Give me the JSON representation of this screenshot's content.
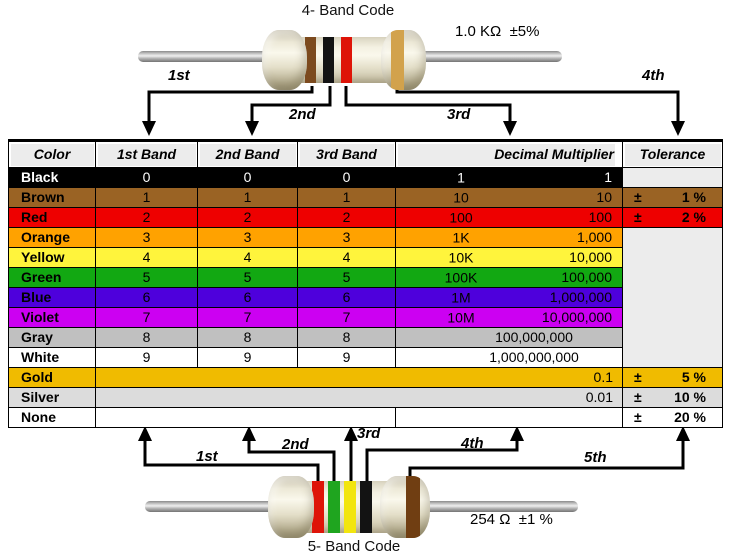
{
  "top_diagram": {
    "title": "4- Band Code",
    "value_label": "1.0 KΩ  ±5%",
    "arrow_labels": [
      "1st",
      "2nd",
      "3rd",
      "4th"
    ],
    "bands": [
      {
        "name": "brown",
        "hex": "#7C4A1E"
      },
      {
        "name": "black",
        "hex": "#131313"
      },
      {
        "name": "red",
        "hex": "#DE1408"
      },
      {
        "name": "gold",
        "hex": "#D2A24C"
      }
    ]
  },
  "bottom_diagram": {
    "title": "5- Band Code",
    "value_label": "254 Ω  ±1 %",
    "arrow_labels": [
      "1st",
      "2nd",
      "3rd",
      "4th",
      "5th"
    ],
    "bands": [
      {
        "name": "red",
        "hex": "#DE1408"
      },
      {
        "name": "green",
        "hex": "#1FA51F"
      },
      {
        "name": "yellow",
        "hex": "#F2E50E"
      },
      {
        "name": "black",
        "hex": "#131313"
      },
      {
        "name": "brown",
        "hex": "#703E12"
      }
    ]
  },
  "table": {
    "headers": [
      "Color",
      "1st Band",
      "2nd Band",
      "3rd Band",
      "Decimal Multiplier",
      "Tolerance"
    ],
    "header_bg": "#ECECEC",
    "empty_tolerance_bg": "#ECECEC",
    "rows": [
      {
        "color": "Black",
        "bg": "#000000",
        "fg": "#FFFFFF",
        "bands": [
          "0",
          "0",
          "0"
        ],
        "mult_short": "1",
        "mult_full": "1",
        "tol_type": "empty"
      },
      {
        "color": "Brown",
        "bg": "#9A6324",
        "bands": [
          "1",
          "1",
          "1"
        ],
        "mult_short": "10",
        "mult_full": "10",
        "tol_type": "value",
        "tol_pm": "±",
        "tol_val": "1 %"
      },
      {
        "color": "Red",
        "bg": "#EE0000",
        "bands": [
          "2",
          "2",
          "2"
        ],
        "mult_short": "100",
        "mult_full": "100",
        "tol_type": "value",
        "tol_pm": "±",
        "tol_val": "2 %"
      },
      {
        "color": "Orange",
        "bg": "#FFA200",
        "bands": [
          "3",
          "3",
          "3"
        ],
        "mult_short": "1K",
        "mult_full": "1,000",
        "tol_type": "empty-span",
        "tol_rowspan": 7
      },
      {
        "color": "Yellow",
        "bg": "#FFF43C",
        "bands": [
          "4",
          "4",
          "4"
        ],
        "mult_short": "10K",
        "mult_full": "10,000",
        "tol_type": "none"
      },
      {
        "color": "Green",
        "bg": "#12A812",
        "bands": [
          "5",
          "5",
          "5"
        ],
        "mult_short": "100K",
        "mult_full": "100,000",
        "tol_type": "none"
      },
      {
        "color": "Blue",
        "bg": "#4E00DC",
        "bands": [
          "6",
          "6",
          "6"
        ],
        "mult_short": "1M",
        "mult_full": "1,000,000",
        "tol_type": "none"
      },
      {
        "color": "Violet",
        "bg": "#CC00F2",
        "bands": [
          "7",
          "7",
          "7"
        ],
        "mult_short": "10M",
        "mult_full": "10,000,000",
        "tol_type": "none"
      },
      {
        "color": "Gray",
        "bg": "#C0C0C0",
        "bands": [
          "8",
          "8",
          "8"
        ],
        "mult_short": "",
        "mult_full": "100,000,000",
        "mult_pad": "wide",
        "tol_type": "none"
      },
      {
        "color": "White",
        "bg": "#FFFFFF",
        "bands": [
          "9",
          "9",
          "9"
        ],
        "mult_short": "",
        "mult_full": "1,000,000,000",
        "mult_pad": "wide",
        "tol_type": "none"
      },
      {
        "color": "Gold",
        "bg": "#F0BB00",
        "merged_value": "0.1",
        "tol_type": "value",
        "tol_pm": "±",
        "tol_val": "5 %"
      },
      {
        "color": "Silver",
        "bg": "#DCDCDC",
        "merged_value": "0.01",
        "tol_type": "value",
        "tol_pm": "±",
        "tol_val": "10 %"
      },
      {
        "color": "None",
        "bg": "#FFFFFF",
        "bands_empty": true,
        "tol_type": "value",
        "tol_pm": "±",
        "tol_val": "20 %"
      }
    ]
  }
}
